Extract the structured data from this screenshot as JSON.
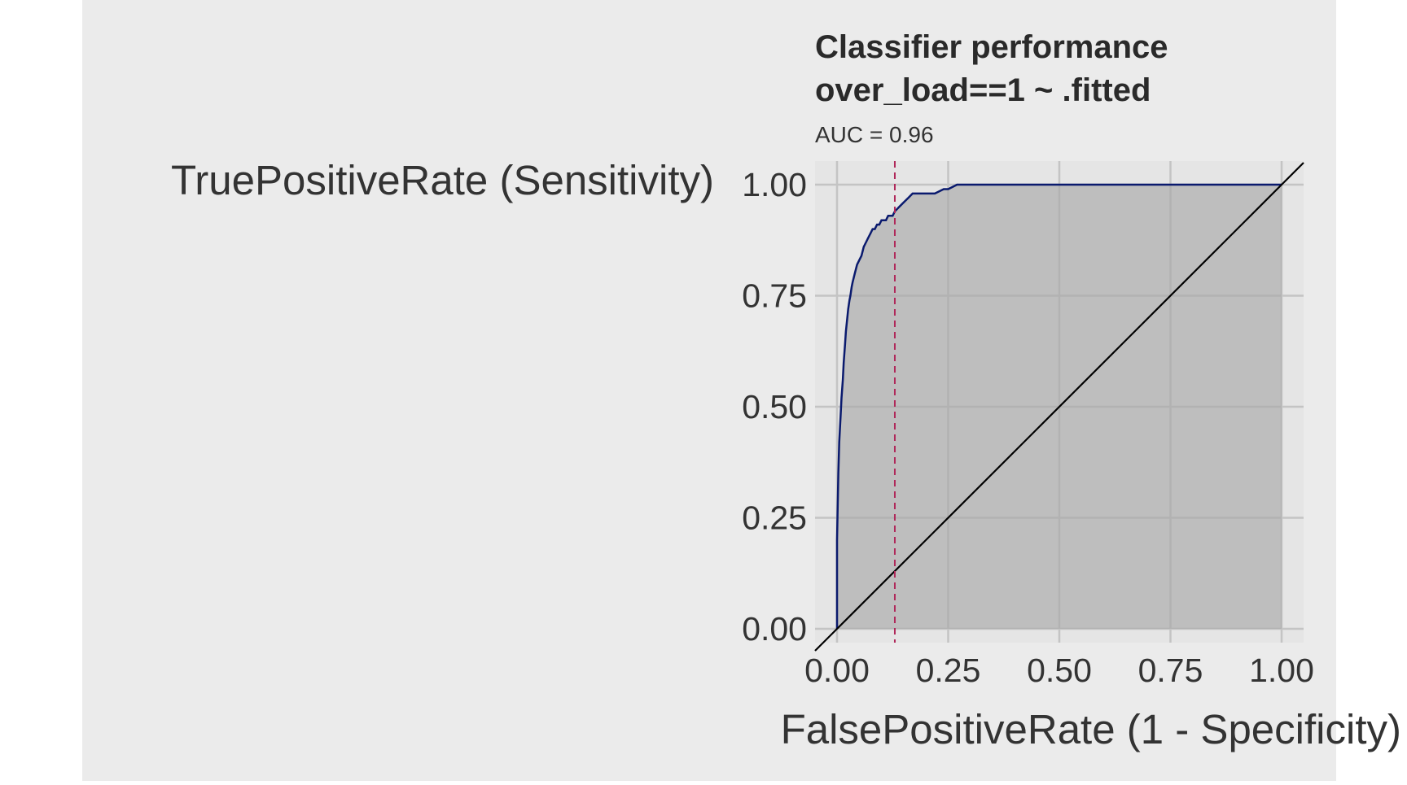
{
  "colors": {
    "page": "#ffffff",
    "plot_background": "#ebebeb",
    "panel": "#e5e5e5",
    "grid": "#c4c4c4",
    "grid_minor": "#d4d4d4",
    "area_fill": "#a6a6a6",
    "roc_line": "#0a1a6e",
    "diagonal": "#000000",
    "threshold_line": "#b0285a",
    "text": "#333333",
    "title": "#2a2a2a"
  },
  "chart_data": {
    "type": "line",
    "title_line1": "Classifier performance",
    "title_line2": "over_load==1 ~ .fitted",
    "subtitle": "AUC = 0.96",
    "xlabel": "FalsePositiveRate (1 - Specificity)",
    "ylabel": "TruePositiveRate (Sensitivity)",
    "xlim": [
      0,
      1
    ],
    "ylim": [
      0,
      1
    ],
    "x_ticks": [
      "0.00",
      "0.25",
      "0.50",
      "0.75",
      "1.00"
    ],
    "y_ticks": [
      "0.00",
      "0.25",
      "0.50",
      "0.75",
      "1.00"
    ],
    "grid": true,
    "threshold_fpr": 0.13,
    "diagonal": [
      [
        0,
        0
      ],
      [
        1,
        1
      ]
    ],
    "roc": {
      "fpr": [
        0.0,
        0.0,
        0.003,
        0.005,
        0.008,
        0.01,
        0.013,
        0.015,
        0.018,
        0.02,
        0.023,
        0.025,
        0.028,
        0.03,
        0.033,
        0.035,
        0.04,
        0.045,
        0.05,
        0.055,
        0.06,
        0.065,
        0.07,
        0.075,
        0.08,
        0.085,
        0.09,
        0.095,
        0.1,
        0.105,
        0.11,
        0.115,
        0.12,
        0.125,
        0.13,
        0.14,
        0.15,
        0.16,
        0.17,
        0.18,
        0.2,
        0.22,
        0.24,
        0.25,
        0.27,
        0.3,
        0.4,
        0.5,
        0.6,
        0.7,
        0.71,
        0.8,
        0.9,
        1.0
      ],
      "tpr": [
        0.0,
        0.2,
        0.35,
        0.42,
        0.48,
        0.52,
        0.56,
        0.6,
        0.64,
        0.67,
        0.7,
        0.72,
        0.74,
        0.75,
        0.77,
        0.78,
        0.8,
        0.82,
        0.83,
        0.84,
        0.86,
        0.87,
        0.88,
        0.89,
        0.9,
        0.9,
        0.91,
        0.91,
        0.92,
        0.92,
        0.92,
        0.93,
        0.93,
        0.93,
        0.94,
        0.95,
        0.96,
        0.97,
        0.98,
        0.98,
        0.98,
        0.98,
        0.99,
        0.99,
        1.0,
        1.0,
        1.0,
        1.0,
        1.0,
        1.0,
        1.0,
        1.0,
        1.0,
        1.0
      ]
    }
  }
}
